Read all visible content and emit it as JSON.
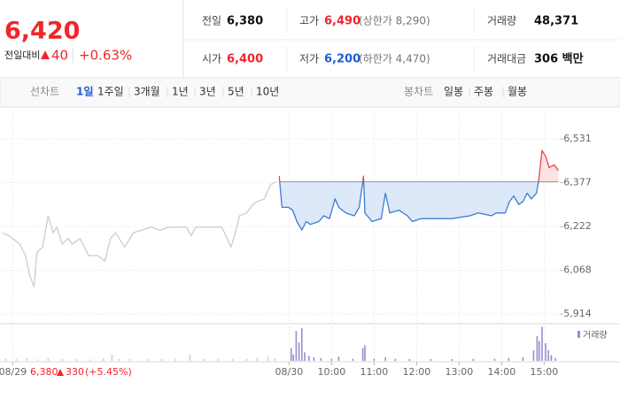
{
  "header": {
    "price": "6,420",
    "change_label": "전일대비",
    "change": "40",
    "rate": "+0.63%"
  },
  "summary": {
    "rows": [
      [
        {
          "label": "전일",
          "value": "6,380",
          "color": "#111111"
        },
        {
          "label": "고가",
          "value": "6,490",
          "note": "(상한가 8,290)",
          "color": "#f0262b"
        },
        {
          "label": "거래량",
          "value": "48,371",
          "color": "#111111"
        }
      ],
      [
        {
          "label": "시가",
          "value": "6,400",
          "color": "#f0262b"
        },
        {
          "label": "저가",
          "value": "6,200",
          "note": "(하한가 4,470)",
          "color": "#1f5fd6"
        },
        {
          "label": "거래대금",
          "value": "306 백만",
          "color": "#111111"
        }
      ]
    ]
  },
  "tabs": {
    "line_label": "선차트",
    "line_periods": [
      "1일",
      "1주일",
      "3개월",
      "1년",
      "3년",
      "5년",
      "10년"
    ],
    "candle_label": "봉차트",
    "candle_periods": [
      "일봉",
      "주봉",
      "월봉"
    ]
  },
  "chart_data": {
    "type": "line",
    "xlim": [
      -408,
      382
    ],
    "xticks": [
      {
        "value": -390,
        "label": "08/29"
      },
      {
        "value": 0,
        "label": "08/30"
      },
      {
        "value": 60,
        "label": "10:00"
      },
      {
        "value": 120,
        "label": "11:00"
      },
      {
        "value": 180,
        "label": "12:00"
      },
      {
        "value": 240,
        "label": "13:00"
      },
      {
        "value": 300,
        "label": "14:00"
      },
      {
        "value": 360,
        "label": "15:00"
      }
    ],
    "ylim": [
      5883,
      6631
    ],
    "yticks": [
      {
        "value": 6531,
        "label": "6,531"
      },
      {
        "value": 6377,
        "label": "6,377"
      },
      {
        "value": 6222,
        "label": "6,222"
      },
      {
        "value": 6068,
        "label": "6,068"
      },
      {
        "value": 5914,
        "label": "5,914"
      }
    ],
    "grid": true,
    "baseline": 6380,
    "series": [
      {
        "color": "#cccccc",
        "x": [
          -405,
          -395,
          -380,
          -372,
          -366,
          -360,
          -356,
          -348,
          -340,
          -333,
          -328,
          -320,
          -312,
          -306,
          -295,
          -283,
          -270,
          -260,
          -252,
          -245,
          -232,
          -220,
          -208,
          -195,
          -182,
          -170,
          -157,
          -145,
          -138,
          -132,
          -95,
          -82,
          -76,
          -70,
          -60,
          -51,
          -45,
          -35,
          -26,
          -18
        ],
        "values": [
          6200,
          6190,
          6160,
          6120,
          6050,
          6010,
          6130,
          6150,
          6260,
          6200,
          6220,
          6160,
          6180,
          6160,
          6180,
          6120,
          6120,
          6100,
          6180,
          6200,
          6150,
          6200,
          6210,
          6220,
          6210,
          6220,
          6220,
          6220,
          6190,
          6220,
          6220,
          6150,
          6200,
          6260,
          6270,
          6300,
          6310,
          6320,
          6370,
          6380
        ]
      },
      {
        "color_up": "#f0454a",
        "color_down": "#3a7bd5",
        "fill_up": "#fde3e4",
        "fill_down": "#dde8f8",
        "x": [
          -14,
          -10,
          -1,
          5,
          11,
          18,
          24,
          30,
          42,
          49,
          57,
          65,
          70,
          80,
          92,
          99,
          105,
          107,
          117,
          130,
          136,
          142,
          155,
          167,
          174,
          186,
          205,
          230,
          255,
          267,
          286,
          292,
          305,
          311,
          317,
          324,
          330,
          336,
          342,
          349,
          352,
          357,
          362,
          367,
          374,
          380
        ],
        "values": [
          6400,
          6290,
          6290,
          6280,
          6240,
          6210,
          6240,
          6230,
          6240,
          6260,
          6250,
          6320,
          6290,
          6270,
          6260,
          6290,
          6400,
          6270,
          6240,
          6250,
          6340,
          6270,
          6280,
          6260,
          6240,
          6250,
          6250,
          6250,
          6260,
          6270,
          6260,
          6270,
          6270,
          6310,
          6330,
          6300,
          6310,
          6340,
          6320,
          6340,
          6380,
          6490,
          6470,
          6430,
          6440,
          6420
        ]
      }
    ],
    "volume": {
      "name": "거래량",
      "ylim": [
        0,
        5000
      ],
      "series": [
        {
          "color": "#cfcfcf",
          "x": [
            -400,
            -385,
            -370,
            -355,
            -340,
            -320,
            -300,
            -280,
            -262,
            -250,
            -240,
            -225,
            -200,
            -180,
            -160,
            -140,
            -120,
            -100,
            -80,
            -60,
            -45,
            -30,
            -20
          ],
          "values": [
            300,
            250,
            400,
            200,
            350,
            250,
            300,
            200,
            350,
            900,
            250,
            300,
            250,
            250,
            300,
            900,
            250,
            300,
            250,
            300,
            400,
            600,
            300
          ]
        },
        {
          "color": "#9c8ccf",
          "x": [
            3,
            6,
            10,
            14,
            18,
            22,
            28,
            35,
            45,
            60,
            70,
            90,
            104,
            107,
            120,
            136,
            150,
            170,
            200,
            230,
            260,
            290,
            310,
            330,
            345,
            350,
            353,
            357,
            362,
            366,
            370,
            376
          ],
          "values": [
            1800,
            900,
            4200,
            2600,
            4600,
            1200,
            700,
            500,
            400,
            300,
            600,
            300,
            1800,
            2200,
            300,
            500,
            300,
            250,
            250,
            250,
            300,
            300,
            400,
            500,
            1500,
            3500,
            2800,
            4800,
            2500,
            1500,
            800,
            400
          ]
        }
      ]
    },
    "prev_day": {
      "close": "6,380",
      "change": "330",
      "rate": "(+5.45%)"
    }
  }
}
